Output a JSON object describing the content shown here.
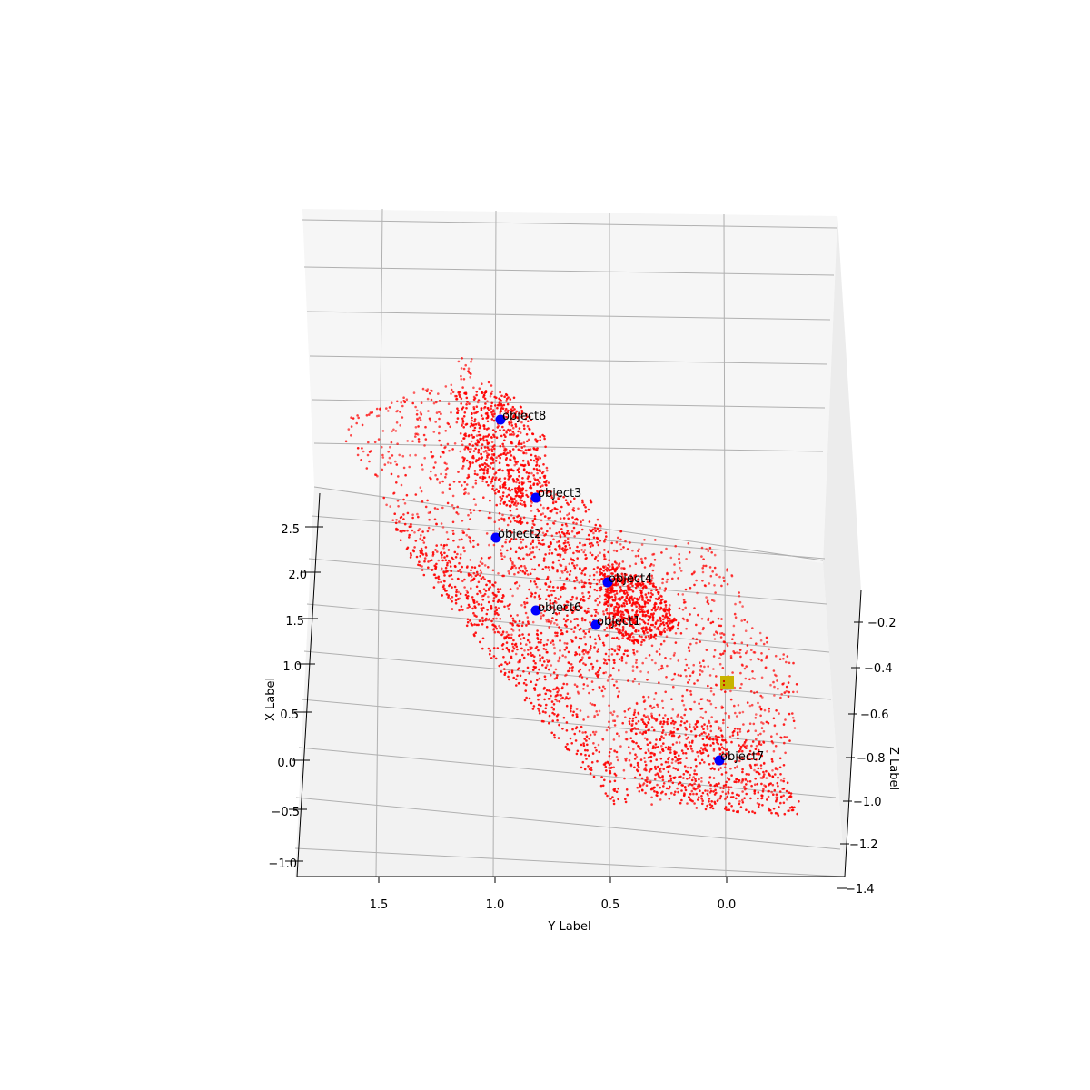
{
  "chart_data": {
    "type": "scatter",
    "projection": "3d",
    "title": "",
    "xlabel": "X Label",
    "ylabel": "Y Label",
    "zlabel": "Z Label",
    "x_ticks": [
      "2.5",
      "2.0",
      "1.5",
      "1.0",
      "0.5",
      "0.0",
      "−0.5",
      "−1.0"
    ],
    "y_ticks": [
      "1.5",
      "1.0",
      "0.5",
      "0.0"
    ],
    "z_ticks": [
      "−0.2",
      "−0.4",
      "−0.6",
      "−0.8",
      "−1.0",
      "−1.2",
      "−1.4"
    ],
    "xlim": [
      -1.1,
      2.8
    ],
    "ylim": [
      -0.5,
      1.85
    ],
    "zlim": [
      -1.4,
      -0.1
    ],
    "grid": true,
    "colors": {
      "point_cloud": "#ff0000",
      "objects": "#0000ff",
      "marker": "#c8b400",
      "pane_back": "#f6f6f6",
      "pane_floor": "#f2f2f2",
      "grid": "#b0b0b0"
    },
    "series": [
      {
        "marker": "dot",
        "color": "#ff0000",
        "x": [
          2.05,
          2.3,
          2.55,
          1.7,
          1.2,
          1.4,
          0.9,
          0.4,
          0.1,
          -0.2,
          -0.4,
          -0.6,
          1.6,
          1.9,
          0.7,
          0.8,
          -0.1,
          -0.35
        ],
        "y": [
          1.15,
          0.95,
          0.9,
          0.55,
          0.45,
          0.35,
          0.25,
          0.1,
          0.05,
          -0.05,
          -0.2,
          -0.3,
          1.15,
          0.7,
          0.8,
          0.6,
          0.15,
          0.05
        ]
      },
      {
        "marker": "circle",
        "color": "#0000ff",
        "labels": [
          "object8",
          "object3",
          "object2",
          "object4",
          "object6",
          "object1",
          "object7"
        ],
        "x": [
          2.2,
          1.75,
          1.6,
          1.25,
          1.1,
          1.0,
          -0.1
        ],
        "y": [
          0.95,
          0.8,
          1.0,
          0.5,
          0.8,
          0.55,
          0.03
        ]
      },
      {
        "marker": "square",
        "color": "#c8b400",
        "x": [
          0.5
        ],
        "y": [
          0.0
        ]
      }
    ]
  }
}
